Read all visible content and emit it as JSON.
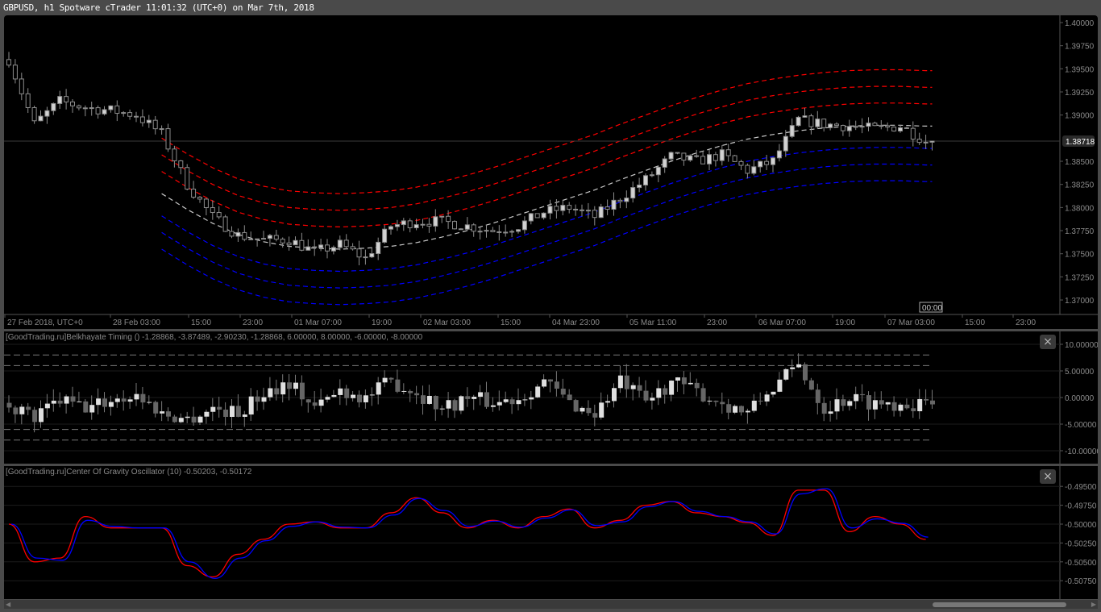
{
  "window": {
    "title": "GBPUSD, h1 Spotware cTrader 11:01:32 (UTC+0) on Mar 7th, 2018"
  },
  "main_chart": {
    "symbol": "GBPUSD",
    "timeframe": "h1",
    "current_price": "1.38718",
    "current_bar_time": "00:00",
    "price_axis": [
      "1.40000",
      "1.39750",
      "1.39500",
      "1.39250",
      "1.39000",
      "1.38500",
      "1.38250",
      "1.38000",
      "1.37750",
      "1.37500",
      "1.37250",
      "1.37000"
    ],
    "time_axis": [
      "27 Feb 2018, UTC+0",
      "28 Feb 03:00",
      "15:00",
      "23:00",
      "01 Mar 07:00",
      "19:00",
      "02 Mar 03:00",
      "15:00",
      "04 Mar 23:00",
      "05 Mar 11:00",
      "23:00",
      "06 Mar 07:00",
      "19:00",
      "07 Mar 03:00",
      "15:00",
      "23:00"
    ],
    "colors": {
      "bull_fill": "#d2d2d2",
      "bear_fill": "#000000",
      "candle_border": "#8c8c8c",
      "upper_bands": "#ff0000",
      "lower_bands": "#0000ff",
      "center": "#c8c8c8"
    }
  },
  "indicator1": {
    "title": "[GoodTrading.ru]Belkhayate Timing () -1.28868, -3.87489, -2.90230, -1.28868, 6.00000, 8.00000, -6.00000, -8.00000",
    "axis": [
      "10.00000",
      "5.00000",
      "0.00000",
      "-5.00000",
      "-10.00000"
    ],
    "levels": [
      8,
      6,
      -6,
      -8
    ],
    "close_label": "×"
  },
  "indicator2": {
    "title": "[GoodTrading.ru]Center Of Gravity Oscillator (10) -0.50203, -0.50172",
    "axis": [
      "-0.49500",
      "-0.49750",
      "-0.50000",
      "-0.50250",
      "-0.50500",
      "-0.50750"
    ],
    "close_label": "×",
    "colors": {
      "cog": "#ff0000",
      "signal": "#0000ff"
    }
  },
  "chart_data": [
    {
      "type": "candlestick",
      "ylim": [
        1.369,
        1.4005
      ],
      "close_samples": [
        1.396,
        1.389,
        1.3915,
        1.3908,
        1.3905,
        1.39,
        1.388,
        1.3825,
        1.379,
        1.377,
        1.3765,
        1.3765,
        1.3752,
        1.376,
        1.3745,
        1.378,
        1.3785,
        1.3785,
        1.378,
        1.3775,
        1.378,
        1.3795,
        1.38,
        1.379,
        1.381,
        1.383,
        1.3855,
        1.385,
        1.3857,
        1.384,
        1.385,
        1.3895,
        1.389,
        1.3888,
        1.3885,
        1.3888,
        1.38718
      ],
      "center_line_samples": [
        null,
        null,
        null,
        null,
        null,
        null,
        1.3815,
        1.3798,
        1.3783,
        1.3771,
        1.3763,
        1.3758,
        1.3756,
        1.3755,
        1.3756,
        1.3758,
        1.3762,
        1.3768,
        1.3775,
        1.3783,
        1.3792,
        1.3801,
        1.381,
        1.3819,
        1.383,
        1.384,
        1.385,
        1.3859,
        1.3867,
        1.3874,
        1.3879,
        1.3883,
        1.3886,
        1.3888,
        1.3889,
        1.3889,
        1.3888
      ],
      "band_offsets": [
        0.0024,
        0.0042,
        0.006
      ]
    },
    {
      "type": "candlestick",
      "ylim": [
        -11,
        11
      ],
      "close_samples": [
        -1,
        -4,
        -0.5,
        -2,
        -0.5,
        0.5,
        -3,
        -4,
        -2,
        -3,
        1,
        3,
        -2,
        1.5,
        0,
        3,
        1,
        -2,
        0,
        -1,
        0,
        3,
        -1,
        -3,
        3,
        -1,
        3,
        1,
        -1,
        -3,
        2,
        6,
        -2,
        0,
        -1,
        -1,
        -1.29
      ]
    },
    {
      "type": "line",
      "ylim": [
        -0.5085,
        -0.494
      ],
      "series": [
        {
          "color": "#ff0000",
          "values": [
            -0.5,
            -0.505,
            -0.5045,
            -0.499,
            -0.5005,
            -0.5005,
            -0.5005,
            -0.5055,
            -0.507,
            -0.504,
            -0.502,
            -0.5,
            -0.4997,
            -0.5005,
            -0.5005,
            -0.4985,
            -0.4965,
            -0.4985,
            -0.5005,
            -0.4995,
            -0.5005,
            -0.499,
            -0.498,
            -0.5005,
            -0.4995,
            -0.4975,
            -0.497,
            -0.4985,
            -0.499,
            -0.4998,
            -0.5015,
            -0.4955,
            -0.4955,
            -0.501,
            -0.499,
            -0.5,
            -0.50203
          ]
        },
        {
          "color": "#0000ff",
          "values": [
            -0.5,
            -0.5045,
            -0.5048,
            -0.4995,
            -0.5003,
            -0.5005,
            -0.5005,
            -0.505,
            -0.5072,
            -0.5045,
            -0.5022,
            -0.5003,
            -0.4997,
            -0.5004,
            -0.5005,
            -0.4988,
            -0.4966,
            -0.4982,
            -0.5003,
            -0.4996,
            -0.5004,
            -0.4992,
            -0.4981,
            -0.5002,
            -0.4997,
            -0.4977,
            -0.497,
            -0.4983,
            -0.499,
            -0.4997,
            -0.5013,
            -0.496,
            -0.4953,
            -0.5005,
            -0.4993,
            -0.4999,
            -0.50172
          ]
        }
      ]
    }
  ]
}
